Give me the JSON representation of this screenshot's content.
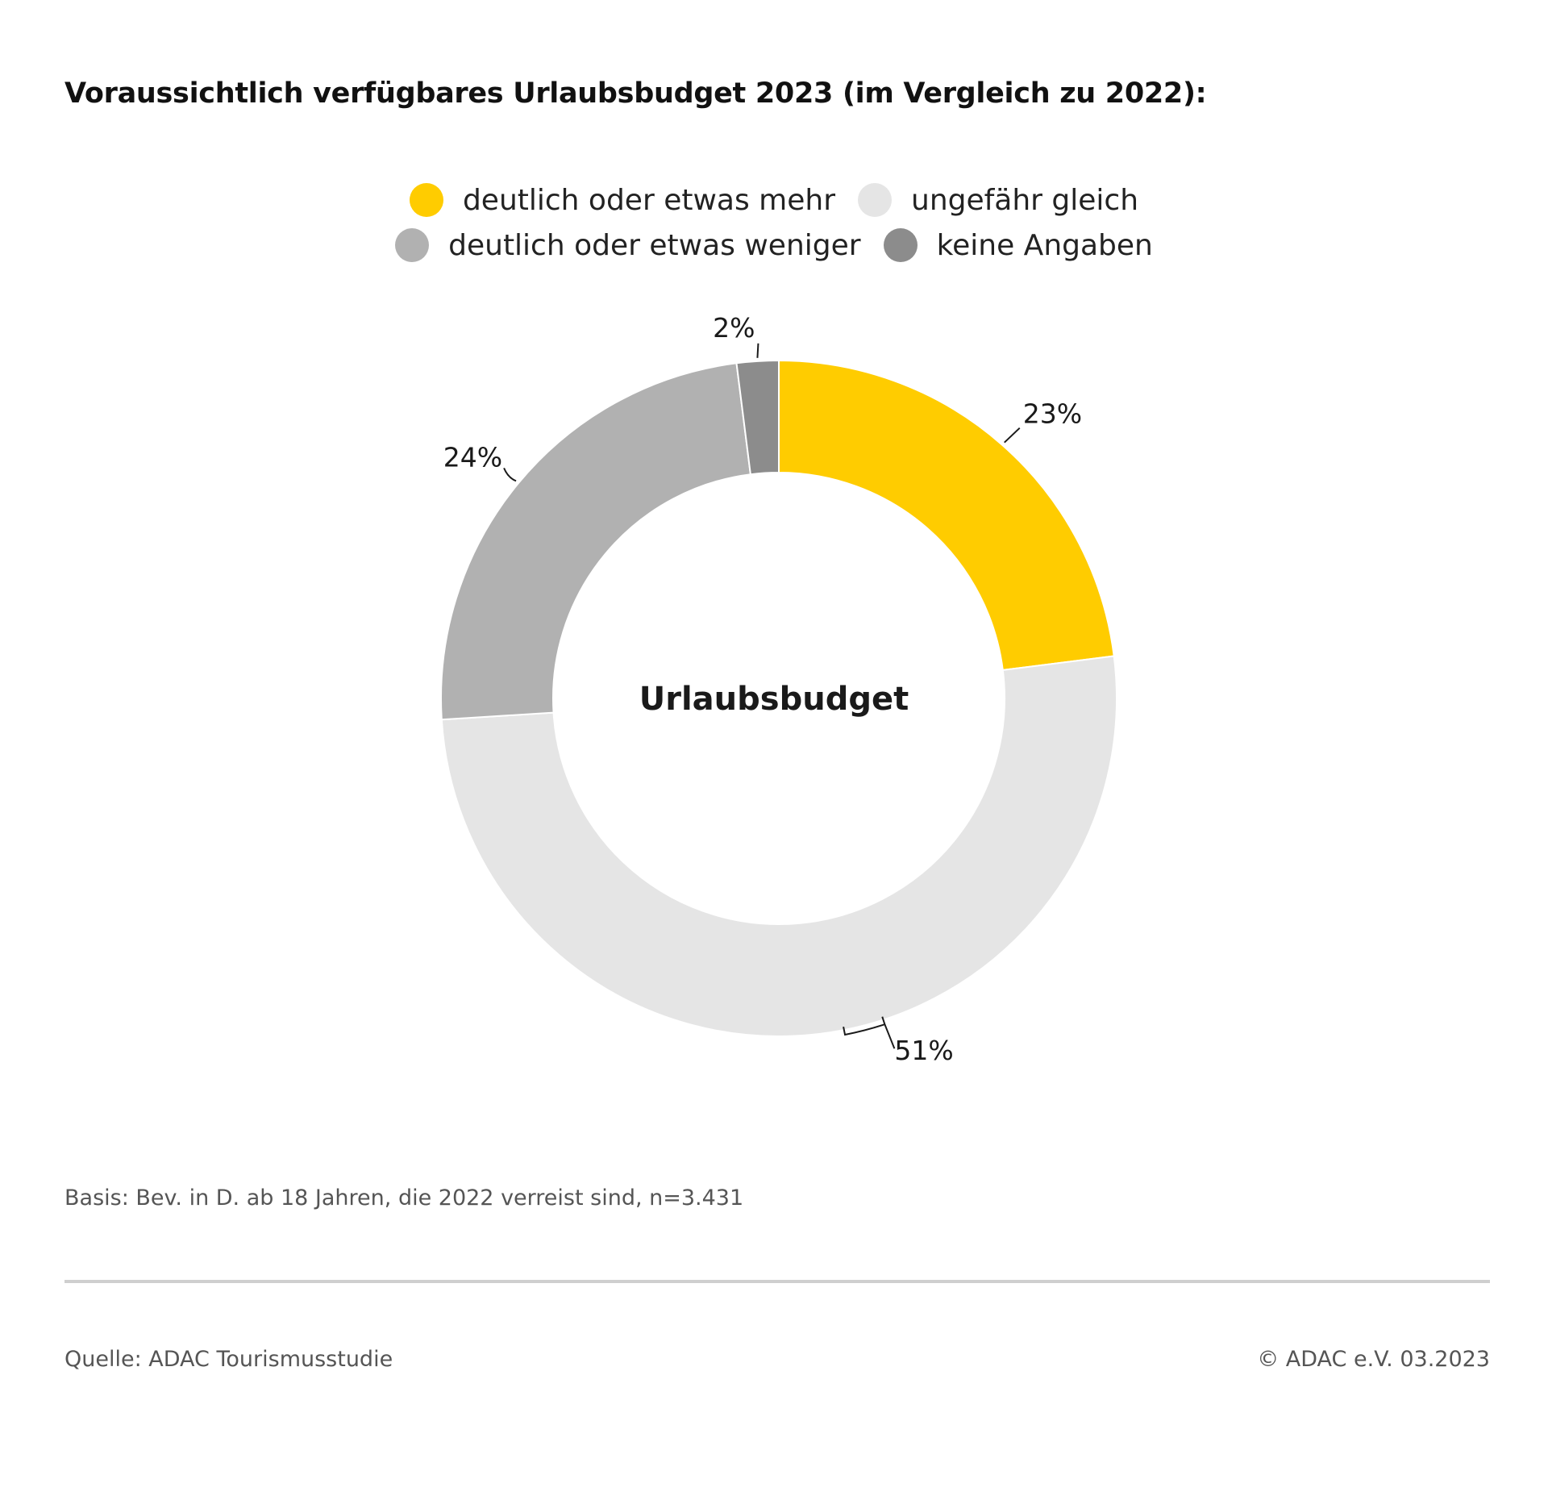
{
  "title": "Voraussichtlich verfügbares Urlaubsbudget 2023 (im Vergleich zu 2022):",
  "footer": {
    "basis": "Basis: Bev. in D. ab 18 Jahren, die 2022 verreist sind, n=3.431",
    "source": "Quelle: ADAC Tourismusstudie",
    "copyright": "© ADAC e.V. 03.2023"
  },
  "chart_data": {
    "type": "pie",
    "variant": "donut",
    "center_label": "Urlaubsbudget",
    "legend_position": "top",
    "series": [
      {
        "name": "deutlich oder etwas mehr",
        "value": 23,
        "label": "23%",
        "color": "#FFCC00"
      },
      {
        "name": "ungefähr gleich",
        "value": 51,
        "label": "51%",
        "color": "#E5E5E5"
      },
      {
        "name": "deutlich oder etwas weniger",
        "value": 24,
        "label": "24%",
        "color": "#B1B1B1"
      },
      {
        "name": "keine Angaben",
        "value": 2,
        "label": "2%",
        "color": "#8C8C8C"
      }
    ]
  }
}
